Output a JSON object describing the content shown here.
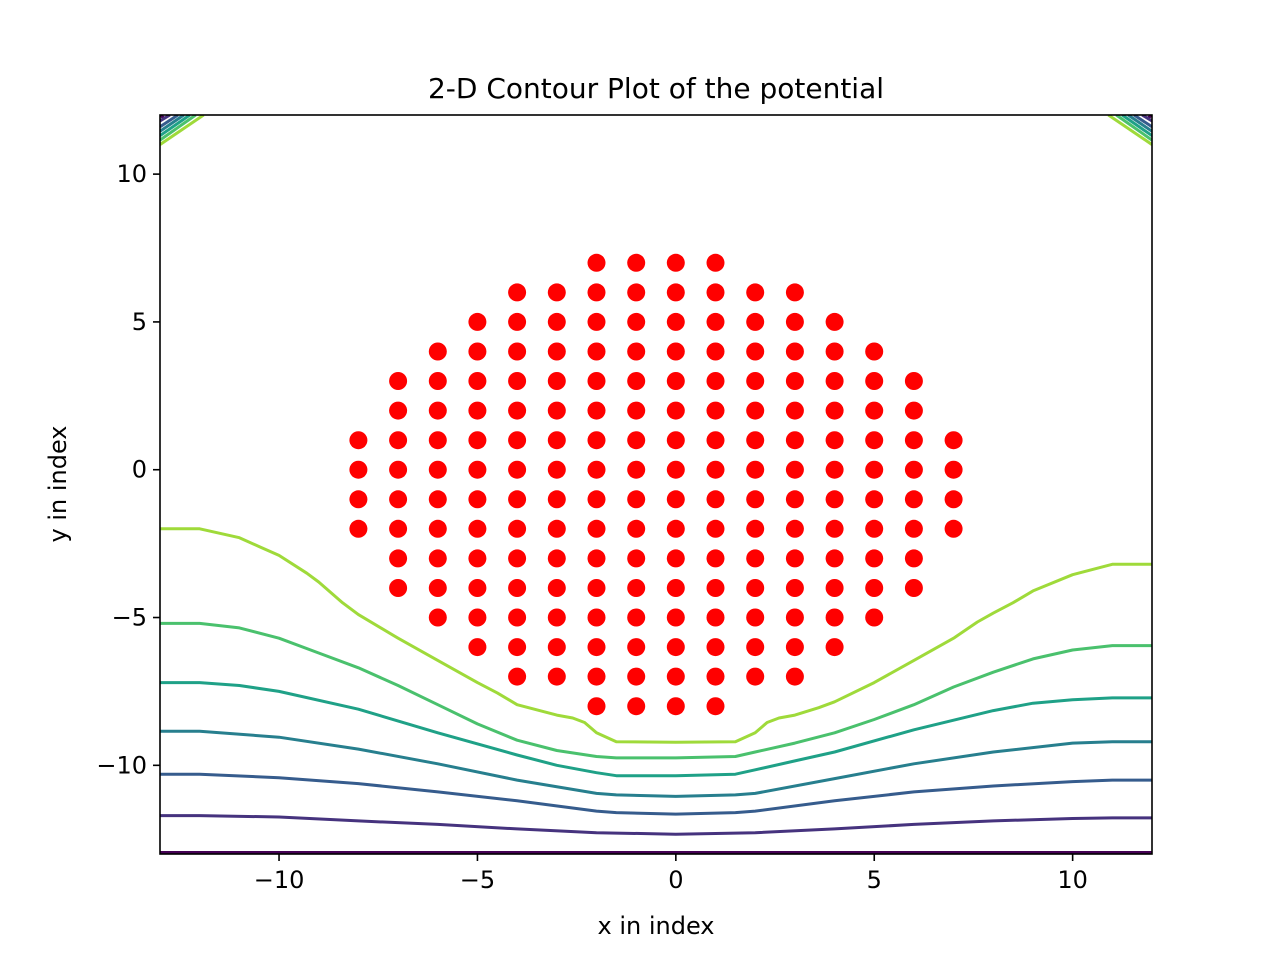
{
  "chart_data": {
    "type": "scatter",
    "title": "2-D Contour Plot of the potential",
    "xlabel": "x in index",
    "ylabel": "y in index",
    "xlim": [
      -13,
      12
    ],
    "ylim": [
      -13,
      12
    ],
    "xticks": [
      -10,
      -5,
      0,
      5,
      10
    ],
    "yticks": [
      -10,
      -5,
      0,
      5,
      10
    ],
    "xtick_labels": [
      "−10",
      "−5",
      "0",
      "5",
      "10"
    ],
    "ytick_labels": [
      "−10",
      "−5",
      "0",
      "5",
      "10"
    ],
    "grid": false,
    "points": {
      "color": "#ff0000",
      "rows": [
        {
          "y": 7,
          "x_min": -2,
          "x_max": 1
        },
        {
          "y": 6,
          "x_min": -4,
          "x_max": 3
        },
        {
          "y": 5,
          "x_min": -5,
          "x_max": 4
        },
        {
          "y": 4,
          "x_min": -6,
          "x_max": 5
        },
        {
          "y": 3,
          "x_min": -7,
          "x_max": 6
        },
        {
          "y": 2,
          "x_min": -7,
          "x_max": 6
        },
        {
          "y": 1,
          "x_min": -8,
          "x_max": 7
        },
        {
          "y": 0,
          "x_min": -8,
          "x_max": 7
        },
        {
          "y": -1,
          "x_min": -8,
          "x_max": 7
        },
        {
          "y": -2,
          "x_min": -8,
          "x_max": 7
        },
        {
          "y": -3,
          "x_min": -7,
          "x_max": 6
        },
        {
          "y": -4,
          "x_min": -7,
          "x_max": 6
        },
        {
          "y": -5,
          "x_min": -6,
          "x_max": 5
        },
        {
          "y": -6,
          "x_min": -5,
          "x_max": 4
        },
        {
          "y": -7,
          "x_min": -4,
          "x_max": 3
        },
        {
          "y": -8,
          "x_min": -2,
          "x_max": 1
        }
      ]
    },
    "contours": [
      {
        "color": "#440154",
        "x": [
          -13,
          12
        ],
        "y": [
          -12.95,
          -12.95
        ]
      },
      {
        "color": "#46337e",
        "x": [
          -13,
          -12,
          -10,
          -8,
          -6,
          -4,
          -2,
          0,
          2,
          4,
          6,
          8,
          10,
          11,
          12
        ],
        "y": [
          -11.7,
          -11.7,
          -11.75,
          -11.88,
          -12.0,
          -12.15,
          -12.28,
          -12.33,
          -12.28,
          -12.15,
          -12.0,
          -11.88,
          -11.8,
          -11.78,
          -11.78
        ]
      },
      {
        "color": "#365c8d",
        "x": [
          -13,
          -12,
          -10,
          -8,
          -6,
          -4,
          -2,
          -1.5,
          0,
          1.5,
          2,
          4,
          6,
          8,
          10,
          11,
          12
        ],
        "y": [
          -10.3,
          -10.3,
          -10.42,
          -10.62,
          -10.9,
          -11.2,
          -11.55,
          -11.6,
          -11.65,
          -11.6,
          -11.55,
          -11.2,
          -10.9,
          -10.7,
          -10.55,
          -10.5,
          -10.5
        ]
      },
      {
        "color": "#277f8e",
        "x": [
          -13,
          -12,
          -10,
          -8,
          -6,
          -4,
          -2,
          -1.5,
          0,
          1.5,
          2,
          4,
          6,
          8,
          10,
          11,
          12
        ],
        "y": [
          -8.85,
          -8.85,
          -9.05,
          -9.45,
          -9.95,
          -10.5,
          -10.95,
          -11.0,
          -11.05,
          -11.0,
          -10.95,
          -10.45,
          -9.95,
          -9.55,
          -9.25,
          -9.2,
          -9.2
        ]
      },
      {
        "color": "#1fa187",
        "x": [
          -13,
          -12,
          -11,
          -10,
          -8,
          -6,
          -4,
          -3,
          -2,
          -1.5,
          0,
          1.5,
          2,
          3,
          4,
          6,
          8,
          9,
          10,
          11,
          12
        ],
        "y": [
          -7.2,
          -7.2,
          -7.3,
          -7.5,
          -8.1,
          -8.9,
          -9.65,
          -10.0,
          -10.25,
          -10.35,
          -10.35,
          -10.3,
          -10.15,
          -9.85,
          -9.55,
          -8.8,
          -8.15,
          -7.9,
          -7.78,
          -7.72,
          -7.72
        ]
      },
      {
        "color": "#4ac16d",
        "x": [
          -13,
          -12,
          -11,
          -10,
          -9,
          -8,
          -7,
          -6,
          -5,
          -4,
          -3,
          -2,
          -1.5,
          0,
          1.5,
          2,
          3,
          4,
          5,
          6,
          7,
          8,
          9,
          10,
          11,
          12
        ],
        "y": [
          -5.2,
          -5.2,
          -5.35,
          -5.7,
          -6.2,
          -6.7,
          -7.3,
          -7.95,
          -8.6,
          -9.15,
          -9.5,
          -9.7,
          -9.75,
          -9.75,
          -9.7,
          -9.55,
          -9.25,
          -8.9,
          -8.45,
          -7.95,
          -7.35,
          -6.85,
          -6.4,
          -6.1,
          -5.95,
          -5.95
        ]
      },
      {
        "color": "#9fda3a",
        "x": [
          -13,
          -12,
          -11,
          -10.5,
          -10,
          -9.3,
          -9,
          -8.4,
          -8,
          -7,
          -6,
          -5,
          -4.5,
          -4,
          -3,
          -2.6,
          -2.3,
          -2,
          -1.5,
          0,
          1.5,
          2,
          2.3,
          2.6,
          3,
          3.6,
          4,
          5,
          6,
          7,
          7.6,
          8,
          8.5,
          9,
          10,
          11,
          12
        ],
        "y": [
          -2.0,
          -2.0,
          -2.3,
          -2.6,
          -2.9,
          -3.5,
          -3.8,
          -4.5,
          -4.9,
          -5.7,
          -6.45,
          -7.2,
          -7.55,
          -7.95,
          -8.3,
          -8.4,
          -8.55,
          -8.9,
          -9.2,
          -9.22,
          -9.2,
          -8.9,
          -8.55,
          -8.4,
          -8.3,
          -8.05,
          -7.85,
          -7.2,
          -6.45,
          -5.7,
          -5.15,
          -4.85,
          -4.5,
          -4.1,
          -3.55,
          -3.2,
          -3.2
        ]
      }
    ],
    "corner_contours": [
      {
        "color": "#440154",
        "x": [
          -13,
          -12.9
        ],
        "y": [
          12,
          11.9
        ]
      },
      {
        "color": "#46337e",
        "x": [
          -13,
          -12.75
        ],
        "y": [
          11.8,
          12
        ]
      },
      {
        "color": "#365c8d",
        "x": [
          -13,
          -12.55
        ],
        "y": [
          11.6,
          12
        ]
      },
      {
        "color": "#277f8e",
        "x": [
          -13,
          -12.4
        ],
        "y": [
          11.45,
          12
        ]
      },
      {
        "color": "#1fa187",
        "x": [
          -13,
          -12.25
        ],
        "y": [
          11.3,
          12
        ]
      },
      {
        "color": "#4ac16d",
        "x": [
          -13,
          -12.1
        ],
        "y": [
          11.15,
          12
        ]
      },
      {
        "color": "#9fda3a",
        "x": [
          -13,
          -11.9
        ],
        "y": [
          11.0,
          12
        ]
      },
      {
        "color": "#440154",
        "x": [
          12,
          11.9
        ],
        "y": [
          12,
          11.9
        ]
      },
      {
        "color": "#46337e",
        "x": [
          12,
          11.75
        ],
        "y": [
          11.8,
          12
        ]
      },
      {
        "color": "#365c8d",
        "x": [
          12,
          11.55
        ],
        "y": [
          11.6,
          12
        ]
      },
      {
        "color": "#277f8e",
        "x": [
          12,
          11.4
        ],
        "y": [
          11.45,
          12
        ]
      },
      {
        "color": "#1fa187",
        "x": [
          12,
          11.25
        ],
        "y": [
          11.3,
          12
        ]
      },
      {
        "color": "#4ac16d",
        "x": [
          12,
          11.1
        ],
        "y": [
          11.15,
          12
        ]
      },
      {
        "color": "#9fda3a",
        "x": [
          12,
          10.9
        ],
        "y": [
          11.0,
          12
        ]
      }
    ]
  }
}
